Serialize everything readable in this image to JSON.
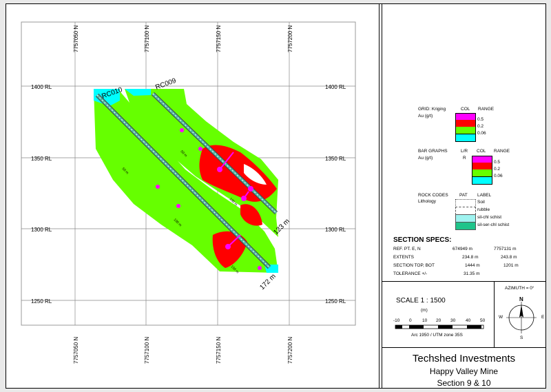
{
  "grid": {
    "northings": [
      "7757050 N",
      "7757100 N",
      "7757150 N",
      "7757200 N"
    ],
    "levels": [
      "1400 RL",
      "1350 RL",
      "1300 RL",
      "1250 RL"
    ]
  },
  "drillholes": [
    {
      "id": "RC010",
      "end_depth": "172 m",
      "depth_ticks": [
        "50 m",
        "100 m",
        "150 m"
      ]
    },
    {
      "id": "RC009",
      "end_depth": "123 m",
      "depth_ticks": [
        "50 m",
        "100 m"
      ]
    }
  ],
  "legend_grid": {
    "label": "GRID: Kriging",
    "sub": "Au (g/t)",
    "col_header": "COL",
    "range_header": "RANGE",
    "ranges": [
      "0.5",
      "0.2",
      "0.06"
    ],
    "colors": [
      "#ff00ff",
      "#ff0000",
      "#66ff00",
      "#00ffff"
    ]
  },
  "legend_bars": {
    "label": "BAR GRAPHS",
    "sub": "Au (g/t)",
    "lr_header": "L/R",
    "lr_value": "R",
    "col_header": "COL",
    "range_header": "RANGE",
    "ranges": [
      "0.5",
      "0.2",
      "0.06"
    ],
    "colors": [
      "#ff00ff",
      "#ff0000",
      "#66ff00",
      "#00ffff"
    ]
  },
  "legend_rock": {
    "label": "ROCK CODES",
    "sub": "Lithology",
    "pat_header": "PAT",
    "label_header": "LABEL",
    "items": [
      "Soil",
      "rubble",
      "sil-chl schist",
      "sil-ser-chl schist"
    ]
  },
  "section_specs": {
    "title": "SECTION  SPECS:",
    "rows": [
      {
        "label": "REF. PT.  E, N",
        "v1": "674949 m",
        "v2": "7757131 m"
      },
      {
        "label": "EXTENTS",
        "v1": "234.8 m",
        "v2": "243.8 m"
      },
      {
        "label": "SECTION TOP, BOT",
        "v1": "1444 m",
        "v2": "1201 m"
      },
      {
        "label": "TOLERANCE  +/-",
        "v1": "31.35 m",
        "v2": ""
      }
    ]
  },
  "scale": {
    "title": "SCALE   1 : 1500",
    "unit": "(m)",
    "ticks": [
      "-10",
      "0",
      "10",
      "20",
      "30",
      "40",
      "50"
    ],
    "datum": "Arc 1950 / UTM zone 35S"
  },
  "compass": {
    "azimuth": "AZIMUTH = 0°",
    "n": "N",
    "s": "S",
    "e": "E",
    "w": "W"
  },
  "title_block": {
    "company": "Techshed Investments",
    "project": "Happy Valley Mine",
    "section": "Section 9 & 10"
  }
}
